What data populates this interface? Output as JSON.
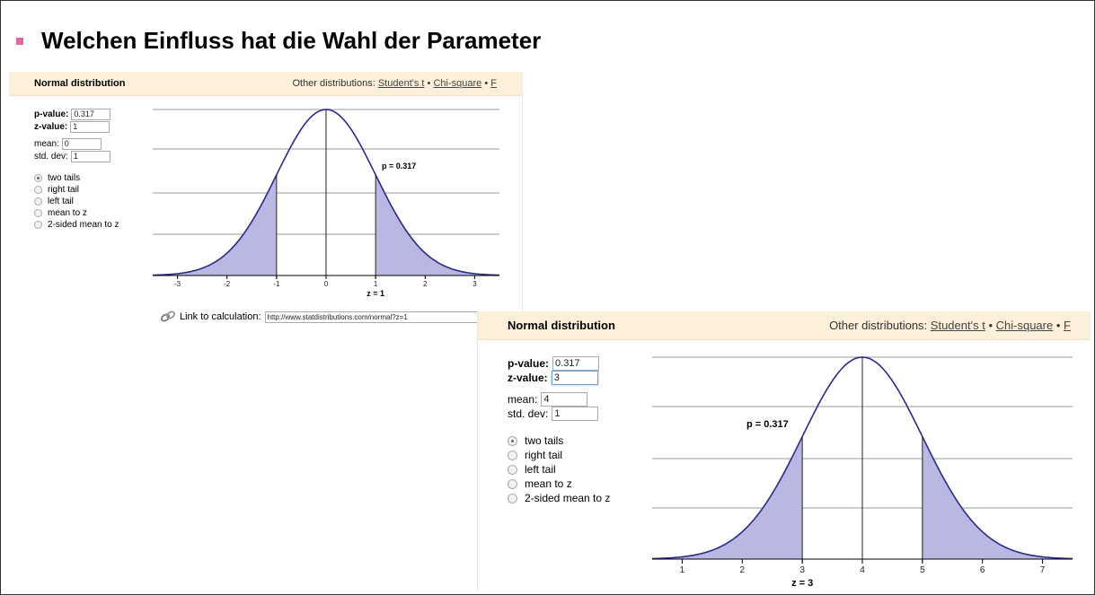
{
  "slide": {
    "title": "Welchen Einfluss hat die Wahl der Parameter",
    "bullet_color": "#e0689e"
  },
  "panels": [
    {
      "header": {
        "title": "Normal distribution",
        "other_label": "Other distributions:",
        "links": [
          "Student's t",
          "Chi-square",
          "F"
        ],
        "sep": "•"
      },
      "form": {
        "pvalue_label": "p-value:",
        "pvalue": "0.317",
        "zvalue_label": "z-value:",
        "zvalue": "1",
        "mean_label": "mean:",
        "mean": "0",
        "std_label": "std. dev:",
        "std": "1",
        "options": [
          "two tails",
          "right tail",
          "left tail",
          "mean to z",
          "2-sided mean to z"
        ],
        "selected_option": "two tails"
      },
      "link": {
        "icon": "link-icon",
        "label": "Link to calculation:",
        "url": "http://www.statdistributions.com/normal?z=1"
      },
      "chart_data": {
        "type": "area",
        "mean": 0,
        "std": 1,
        "z": 1,
        "tails": "two tails",
        "xlim": [
          -3.5,
          3.5
        ],
        "xticks": [
          "-3",
          "-2",
          "-1",
          "0",
          "1",
          "2",
          "3"
        ],
        "annotation": "p = 0.317",
        "xlabel": "z = 1",
        "shaded": [
          [
            -3.5,
            -1
          ],
          [
            1,
            3.5
          ]
        ],
        "grid": true,
        "curve_color": "#2a2a8a",
        "shade_color": "#b8b8e2"
      }
    },
    {
      "header": {
        "title": "Normal distribution",
        "other_label": "Other distributions:",
        "links": [
          "Student's t",
          "Chi-square",
          "F"
        ],
        "sep": "•"
      },
      "form": {
        "pvalue_label": "p-value:",
        "pvalue": "0.317",
        "zvalue_label": "z-value:",
        "zvalue": "3",
        "mean_label": "mean:",
        "mean": "4",
        "std_label": "std. dev:",
        "std": "1",
        "options": [
          "two tails",
          "right tail",
          "left tail",
          "mean to z",
          "2-sided mean to z"
        ],
        "selected_option": "two tails"
      },
      "chart_data": {
        "type": "area",
        "mean": 4,
        "std": 1,
        "z": 3,
        "tails": "two tails",
        "xlim": [
          0.5,
          7.5
        ],
        "xticks": [
          "1",
          "2",
          "3",
          "4",
          "5",
          "6",
          "7"
        ],
        "annotation": "p = 0.317",
        "xlabel": "z = 3",
        "shaded": [
          [
            0.5,
            3
          ],
          [
            5,
            7.5
          ]
        ],
        "grid": true,
        "curve_color": "#2a2a8a",
        "shade_color": "#b8b8e2"
      }
    }
  ]
}
